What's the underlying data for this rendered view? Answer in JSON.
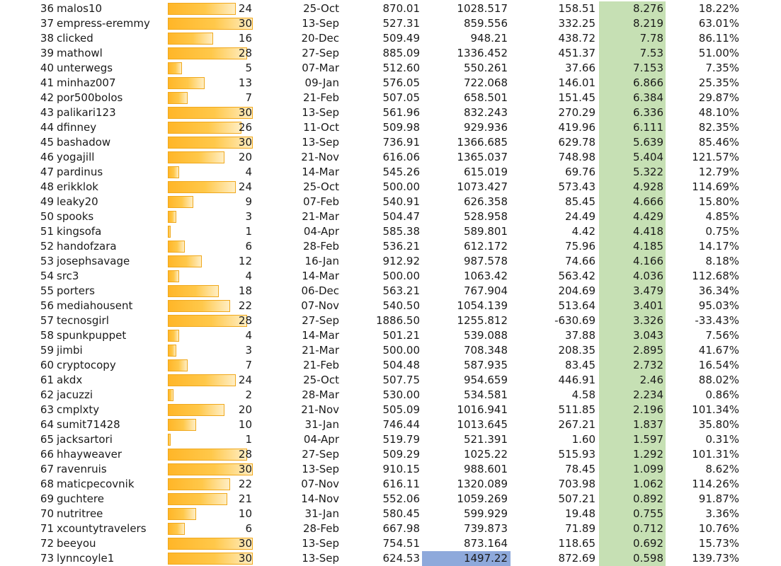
{
  "sheet": {
    "bar_max": 30,
    "bar_color": "#ffc000",
    "ratio_fill_color": "#c6e0b4",
    "highlight_fill_color": "#8ea9db",
    "rows": [
      {
        "rank": "36",
        "name": "malos10",
        "bar": 24,
        "date": "25-Oct",
        "v1": "870.01",
        "v2": "1028.517",
        "v3": "158.51",
        "ratio": "8.276",
        "pct": "18.22%"
      },
      {
        "rank": "37",
        "name": "empress-eremmy",
        "bar": 30,
        "date": "13-Sep",
        "v1": "527.31",
        "v2": "859.556",
        "v3": "332.25",
        "ratio": "8.219",
        "pct": "63.01%"
      },
      {
        "rank": "38",
        "name": "clicked",
        "bar": 16,
        "date": "20-Dec",
        "v1": "509.49",
        "v2": "948.21",
        "v3": "438.72",
        "ratio": "7.78",
        "pct": "86.11%"
      },
      {
        "rank": "39",
        "name": "mathowl",
        "bar": 28,
        "date": "27-Sep",
        "v1": "885.09",
        "v2": "1336.452",
        "v3": "451.37",
        "ratio": "7.53",
        "pct": "51.00%"
      },
      {
        "rank": "40",
        "name": "unterwegs",
        "bar": 5,
        "date": "07-Mar",
        "v1": "512.60",
        "v2": "550.261",
        "v3": "37.66",
        "ratio": "7.153",
        "pct": "7.35%"
      },
      {
        "rank": "41",
        "name": "minhaz007",
        "bar": 13,
        "date": "09-Jan",
        "v1": "576.05",
        "v2": "722.068",
        "v3": "146.01",
        "ratio": "6.866",
        "pct": "25.35%"
      },
      {
        "rank": "42",
        "name": "por500bolos",
        "bar": 7,
        "date": "21-Feb",
        "v1": "507.05",
        "v2": "658.501",
        "v3": "151.45",
        "ratio": "6.384",
        "pct": "29.87%"
      },
      {
        "rank": "43",
        "name": "palikari123",
        "bar": 30,
        "date": "13-Sep",
        "v1": "561.96",
        "v2": "832.243",
        "v3": "270.29",
        "ratio": "6.336",
        "pct": "48.10%"
      },
      {
        "rank": "44",
        "name": "dfinney",
        "bar": 26,
        "date": "11-Oct",
        "v1": "509.98",
        "v2": "929.936",
        "v3": "419.96",
        "ratio": "6.111",
        "pct": "82.35%"
      },
      {
        "rank": "45",
        "name": "bashadow",
        "bar": 30,
        "date": "13-Sep",
        "v1": "736.91",
        "v2": "1366.685",
        "v3": "629.78",
        "ratio": "5.639",
        "pct": "85.46%"
      },
      {
        "rank": "46",
        "name": "yogajill",
        "bar": 20,
        "date": "21-Nov",
        "v1": "616.06",
        "v2": "1365.037",
        "v3": "748.98",
        "ratio": "5.404",
        "pct": "121.57%"
      },
      {
        "rank": "47",
        "name": "pardinus",
        "bar": 4,
        "date": "14-Mar",
        "v1": "545.26",
        "v2": "615.019",
        "v3": "69.76",
        "ratio": "5.322",
        "pct": "12.79%"
      },
      {
        "rank": "48",
        "name": "erikklok",
        "bar": 24,
        "date": "25-Oct",
        "v1": "500.00",
        "v2": "1073.427",
        "v3": "573.43",
        "ratio": "4.928",
        "pct": "114.69%"
      },
      {
        "rank": "49",
        "name": "leaky20",
        "bar": 9,
        "date": "07-Feb",
        "v1": "540.91",
        "v2": "626.358",
        "v3": "85.45",
        "ratio": "4.666",
        "pct": "15.80%"
      },
      {
        "rank": "50",
        "name": "spooks",
        "bar": 3,
        "date": "21-Mar",
        "v1": "504.47",
        "v2": "528.958",
        "v3": "24.49",
        "ratio": "4.429",
        "pct": "4.85%"
      },
      {
        "rank": "51",
        "name": "kingsofa",
        "bar": 1,
        "date": "04-Apr",
        "v1": "585.38",
        "v2": "589.801",
        "v3": "4.42",
        "ratio": "4.418",
        "pct": "0.75%"
      },
      {
        "rank": "52",
        "name": "handofzara",
        "bar": 6,
        "date": "28-Feb",
        "v1": "536.21",
        "v2": "612.172",
        "v3": "75.96",
        "ratio": "4.185",
        "pct": "14.17%"
      },
      {
        "rank": "53",
        "name": "josephsavage",
        "bar": 12,
        "date": "16-Jan",
        "v1": "912.92",
        "v2": "987.578",
        "v3": "74.66",
        "ratio": "4.166",
        "pct": "8.18%"
      },
      {
        "rank": "54",
        "name": "src3",
        "bar": 4,
        "date": "14-Mar",
        "v1": "500.00",
        "v2": "1063.42",
        "v3": "563.42",
        "ratio": "4.036",
        "pct": "112.68%"
      },
      {
        "rank": "55",
        "name": "porters",
        "bar": 18,
        "date": "06-Dec",
        "v1": "563.21",
        "v2": "767.904",
        "v3": "204.69",
        "ratio": "3.479",
        "pct": "36.34%"
      },
      {
        "rank": "56",
        "name": "mediahousent",
        "bar": 22,
        "date": "07-Nov",
        "v1": "540.50",
        "v2": "1054.139",
        "v3": "513.64",
        "ratio": "3.401",
        "pct": "95.03%"
      },
      {
        "rank": "57",
        "name": "tecnosgirl",
        "bar": 28,
        "date": "27-Sep",
        "v1": "1886.50",
        "v2": "1255.812",
        "v3": "-630.69",
        "ratio": "3.326",
        "pct": "-33.43%"
      },
      {
        "rank": "58",
        "name": "spunkpuppet",
        "bar": 4,
        "date": "14-Mar",
        "v1": "501.21",
        "v2": "539.088",
        "v3": "37.88",
        "ratio": "3.043",
        "pct": "7.56%"
      },
      {
        "rank": "59",
        "name": "jimbi",
        "bar": 3,
        "date": "21-Mar",
        "v1": "500.00",
        "v2": "708.348",
        "v3": "208.35",
        "ratio": "2.895",
        "pct": "41.67%"
      },
      {
        "rank": "60",
        "name": "cryptocopy",
        "bar": 7,
        "date": "21-Feb",
        "v1": "504.48",
        "v2": "587.935",
        "v3": "83.45",
        "ratio": "2.732",
        "pct": "16.54%"
      },
      {
        "rank": "61",
        "name": "akdx",
        "bar": 24,
        "date": "25-Oct",
        "v1": "507.75",
        "v2": "954.659",
        "v3": "446.91",
        "ratio": "2.46",
        "pct": "88.02%"
      },
      {
        "rank": "62",
        "name": "jacuzzi",
        "bar": 2,
        "date": "28-Mar",
        "v1": "530.00",
        "v2": "534.581",
        "v3": "4.58",
        "ratio": "2.234",
        "pct": "0.86%"
      },
      {
        "rank": "63",
        "name": "cmplxty",
        "bar": 20,
        "date": "21-Nov",
        "v1": "505.09",
        "v2": "1016.941",
        "v3": "511.85",
        "ratio": "2.196",
        "pct": "101.34%"
      },
      {
        "rank": "64",
        "name": "sumit71428",
        "bar": 10,
        "date": "31-Jan",
        "v1": "746.44",
        "v2": "1013.645",
        "v3": "267.21",
        "ratio": "1.837",
        "pct": "35.80%"
      },
      {
        "rank": "65",
        "name": "jacksartori",
        "bar": 1,
        "date": "04-Apr",
        "v1": "519.79",
        "v2": "521.391",
        "v3": "1.60",
        "ratio": "1.597",
        "pct": "0.31%"
      },
      {
        "rank": "66",
        "name": "hhayweaver",
        "bar": 28,
        "date": "27-Sep",
        "v1": "509.29",
        "v2": "1025.22",
        "v3": "515.93",
        "ratio": "1.292",
        "pct": "101.31%"
      },
      {
        "rank": "67",
        "name": "ravenruis",
        "bar": 30,
        "date": "13-Sep",
        "v1": "910.15",
        "v2": "988.601",
        "v3": "78.45",
        "ratio": "1.099",
        "pct": "8.62%"
      },
      {
        "rank": "68",
        "name": "maticpecovnik",
        "bar": 22,
        "date": "07-Nov",
        "v1": "616.11",
        "v2": "1320.089",
        "v3": "703.98",
        "ratio": "1.062",
        "pct": "114.26%"
      },
      {
        "rank": "69",
        "name": "guchtere",
        "bar": 21,
        "date": "14-Nov",
        "v1": "552.06",
        "v2": "1059.269",
        "v3": "507.21",
        "ratio": "0.892",
        "pct": "91.87%"
      },
      {
        "rank": "70",
        "name": "nutritree",
        "bar": 10,
        "date": "31-Jan",
        "v1": "580.45",
        "v2": "599.929",
        "v3": "19.48",
        "ratio": "0.755",
        "pct": "3.36%"
      },
      {
        "rank": "71",
        "name": "xcountytravelers",
        "bar": 6,
        "date": "28-Feb",
        "v1": "667.98",
        "v2": "739.873",
        "v3": "71.89",
        "ratio": "0.712",
        "pct": "10.76%"
      },
      {
        "rank": "72",
        "name": "beeyou",
        "bar": 30,
        "date": "13-Sep",
        "v1": "754.51",
        "v2": "873.164",
        "v3": "118.65",
        "ratio": "0.692",
        "pct": "15.73%"
      },
      {
        "rank": "73",
        "name": "lynncoyle1",
        "bar": 30,
        "date": "13-Sep",
        "v1": "624.53",
        "v2": "1497.22",
        "v3": "872.69",
        "ratio": "0.598",
        "pct": "139.73%",
        "selected": true
      }
    ]
  }
}
